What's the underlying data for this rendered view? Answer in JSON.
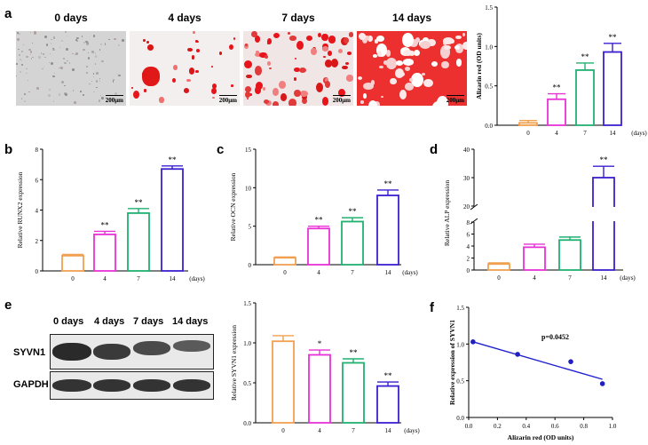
{
  "panels": {
    "a": "a",
    "b": "b",
    "c": "c",
    "d": "d",
    "e": "e",
    "f": "f"
  },
  "micrographs": [
    {
      "title": "0 days",
      "scale": "200μm",
      "stain": "none"
    },
    {
      "title": "4 days",
      "scale": "200μm",
      "stain": "light"
    },
    {
      "title": "7 days",
      "scale": "200μm",
      "stain": "moderate"
    },
    {
      "title": "14 days",
      "scale": "200μm",
      "stain": "heavy"
    }
  ],
  "colors": {
    "d0": "#f0a050",
    "d4": "#e832d8",
    "d7": "#20b070",
    "d14": "#3a1fd0",
    "regression": "#2020d0",
    "points": "#2020c0",
    "stain": "#e8141c"
  },
  "blot": {
    "columns": [
      "0 days",
      "4 days",
      "7 days",
      "14 days"
    ],
    "rows": [
      "SYVN1",
      "GAPDH"
    ]
  },
  "chart_data": [
    {
      "id": "a",
      "type": "bar",
      "categories": [
        "0",
        "4",
        "7",
        "14"
      ],
      "values": [
        0.03,
        0.33,
        0.7,
        0.93
      ],
      "errors": [
        0.03,
        0.07,
        0.09,
        0.11
      ],
      "sig": [
        "",
        "**",
        "**",
        "**"
      ],
      "xlabel": "(days)",
      "ylabel": "Alizarin red (OD units)",
      "ylim": [
        0,
        1.5
      ],
      "yticks": [
        "0.0",
        "0.5",
        "1.0",
        "1.5"
      ]
    },
    {
      "id": "b",
      "type": "bar",
      "categories": [
        "0",
        "4",
        "7",
        "14"
      ],
      "values": [
        1.0,
        2.4,
        3.8,
        6.7
      ],
      "errors": [
        0.08,
        0.2,
        0.3,
        0.2
      ],
      "sig": [
        "",
        "**",
        "**",
        "**"
      ],
      "xlabel": "(days)",
      "ylabel": "Relative RUNX2 expression",
      "ylim": [
        0,
        8
      ],
      "yticks": [
        "0",
        "2",
        "4",
        "6",
        "8"
      ]
    },
    {
      "id": "c",
      "type": "bar",
      "categories": [
        "0",
        "4",
        "7",
        "14"
      ],
      "values": [
        0.9,
        4.7,
        5.6,
        9.0
      ],
      "errors": [
        0.1,
        0.3,
        0.5,
        0.7
      ],
      "sig": [
        "",
        "**",
        "**",
        "**"
      ],
      "xlabel": "(days)",
      "ylabel": "Relative OCN expression",
      "ylim": [
        0,
        15
      ],
      "yticks": [
        "0",
        "5",
        "10",
        "15"
      ]
    },
    {
      "id": "d",
      "type": "bar",
      "categories": [
        "0",
        "4",
        "7",
        "14"
      ],
      "values": [
        1.0,
        3.8,
        5.0,
        30.0
      ],
      "errors": [
        0.2,
        0.5,
        0.5,
        4.0
      ],
      "sig": [
        "",
        "",
        "",
        "**"
      ],
      "xlabel": "(days)",
      "ylabel": "Relative ALP expression",
      "ylim": [
        0,
        40
      ],
      "axis_break": [
        8,
        20
      ],
      "yticks_lower": [
        "0",
        "2",
        "4",
        "6",
        "8"
      ],
      "yticks_upper": [
        "20",
        "30",
        "40"
      ]
    },
    {
      "id": "e",
      "type": "bar",
      "categories": [
        "0",
        "4",
        "7",
        "14"
      ],
      "values": [
        1.02,
        0.85,
        0.75,
        0.46
      ],
      "errors": [
        0.07,
        0.06,
        0.05,
        0.05
      ],
      "sig": [
        "",
        "*",
        "**",
        "**"
      ],
      "xlabel": "(days)",
      "ylabel": "Relative SYVN1 expression",
      "ylim": [
        0,
        1.5
      ],
      "yticks": [
        "0.0",
        "0.5",
        "1.0",
        "1.5"
      ]
    },
    {
      "id": "f",
      "type": "scatter",
      "points": [
        [
          0.03,
          1.03
        ],
        [
          0.34,
          0.86
        ],
        [
          0.71,
          0.76
        ],
        [
          0.93,
          0.46
        ]
      ],
      "regression": [
        [
          0.03,
          1.03
        ],
        [
          0.93,
          0.52
        ]
      ],
      "annotation": "p=0.0452",
      "xlabel": "Alizarin red (OD units)",
      "ylabel": "Relative expression of SYVN1",
      "xlim": [
        0,
        1.0
      ],
      "ylim": [
        0,
        1.5
      ],
      "xticks": [
        "0.0",
        "0.2",
        "0.4",
        "0.6",
        "0.8",
        "1.0"
      ],
      "yticks": [
        "0.0",
        "0.5",
        "1.0",
        "1.5"
      ]
    }
  ]
}
